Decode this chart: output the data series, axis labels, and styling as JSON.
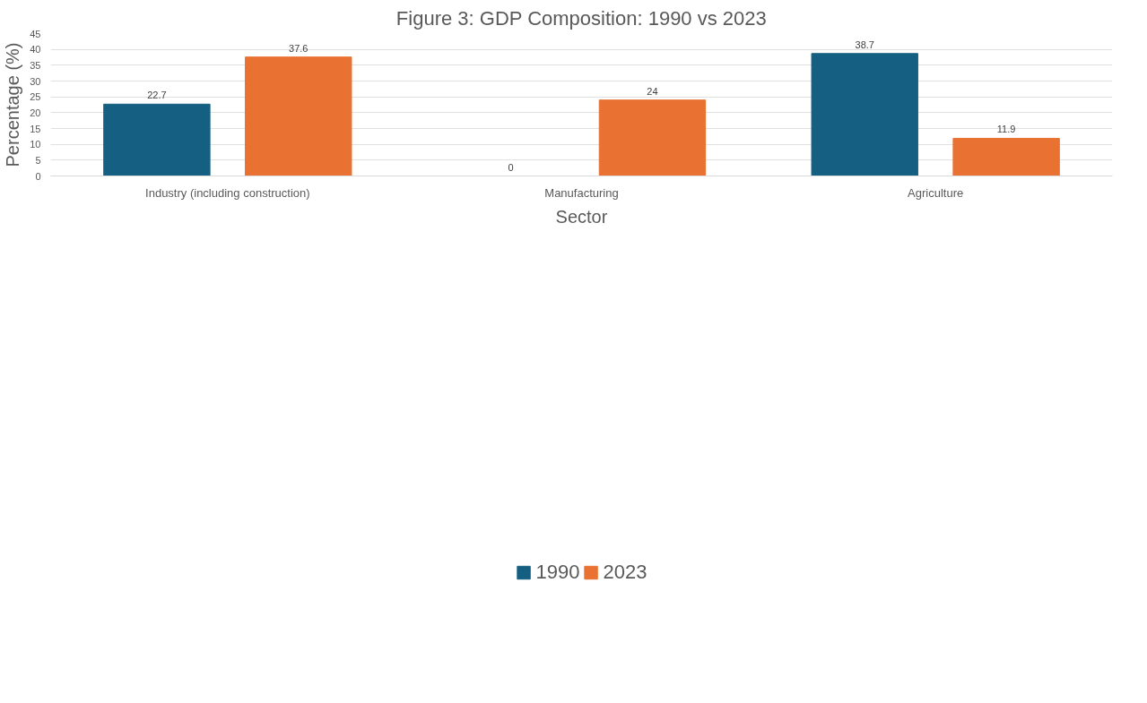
{
  "chart_data": {
    "type": "bar",
    "title": "Figure 3: GDP Composition: 1990 vs 2023",
    "xlabel": "Sector",
    "ylabel": "Percentage (%)",
    "categories": [
      "Industry (including construction)",
      "Manufacturing",
      "Agriculture"
    ],
    "series": [
      {
        "name": "1990",
        "color": "#156082",
        "values": [
          22.7,
          0,
          38.7
        ]
      },
      {
        "name": "2023",
        "color": "#e97132",
        "values": [
          37.6,
          24,
          11.9
        ]
      }
    ],
    "ylim": [
      0,
      45
    ],
    "yticks": [
      0,
      5,
      10,
      15,
      20,
      25,
      30,
      35,
      40,
      45
    ],
    "grid": "y",
    "legend": "bottom",
    "data_labels": true
  }
}
